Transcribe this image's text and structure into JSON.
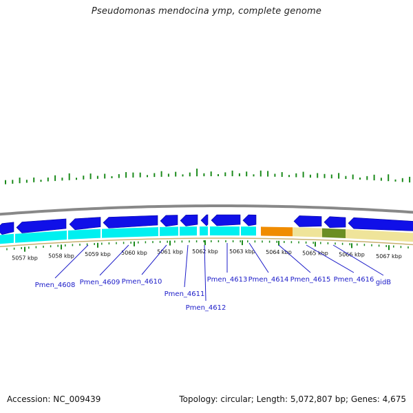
{
  "title": "Pseudomonas mendocina ymp, complete genome",
  "footer": {
    "accession": "Accession: NC_009439",
    "summary": "Topology: circular; Length: 5,072,807 bp; Genes: 4,675"
  },
  "colors": {
    "gene_blue": "#1010e8",
    "cds_cyan": "#00f0f0",
    "rrna_orange": "#f08c00",
    "region_khaki": "#efe49a",
    "feature_olive": "#6b8e23",
    "tick_green": "#1a8a1a",
    "label_blue": "#1a1ac8",
    "backbone_gray": "#888888"
  },
  "axis": {
    "unit": "kbp",
    "ticks": [
      "5057 kbp",
      "5058 kbp",
      "5059 kbp",
      "5060 kbp",
      "5061 kbp",
      "5062 kbp",
      "5063 kbp",
      "5064 kbp",
      "5065 kbp",
      "5066 kbp",
      "5067 kbp"
    ]
  },
  "genes": [
    {
      "label": "Pmen_4608"
    },
    {
      "label": "Pmen_4609"
    },
    {
      "label": "Pmen_4610"
    },
    {
      "label": "Pmen_4611"
    },
    {
      "label": "Pmen_4612"
    },
    {
      "label": "Pmen_4613"
    },
    {
      "label": "Pmen_4614"
    },
    {
      "label": "Pmen_4615"
    },
    {
      "label": "Pmen_4616"
    },
    {
      "label": "gidB"
    }
  ]
}
